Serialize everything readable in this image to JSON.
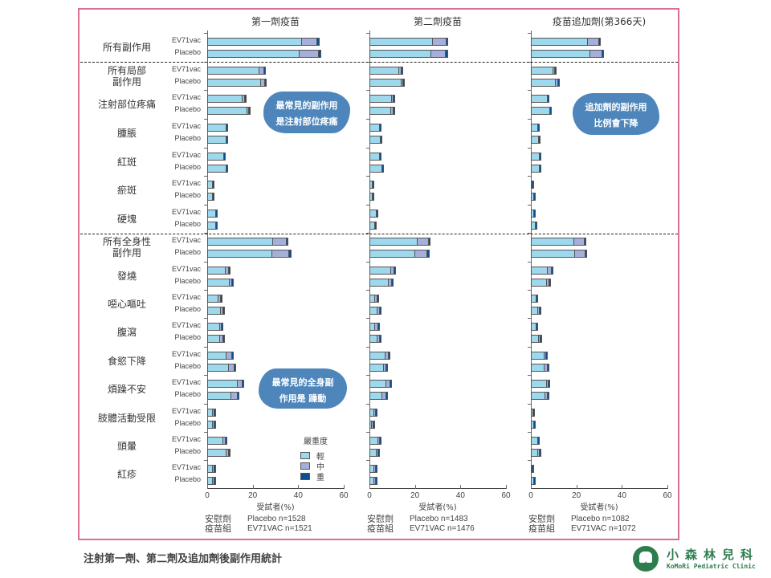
{
  "caption": "注射第一劑、第二劑及追加劑後副作用統計",
  "logo": {
    "name_cn": "小森林兒科",
    "name_en": "KoMoRi Pediatric Clinic"
  },
  "legend": {
    "title": "嚴重度",
    "items": [
      {
        "label": "輕",
        "color": "#9dd8ec"
      },
      {
        "label": "中",
        "color": "#a5afd9"
      },
      {
        "label": "重",
        "color": "#0b4e92"
      }
    ]
  },
  "xaxis_label": "受試者(%)",
  "xticks": [
    "0",
    "20",
    "40",
    "60"
  ],
  "series_labels": [
    "EV71vac",
    "Placebo"
  ],
  "row_labels": [
    [
      "所有副作用"
    ],
    [
      "所有局部",
      "副作用"
    ],
    [
      "注射部位疼痛"
    ],
    [
      "腫脹"
    ],
    [
      "紅斑"
    ],
    [
      "瘀斑"
    ],
    [
      "硬塊"
    ],
    [
      "所有全身性",
      "副作用"
    ],
    [
      "發燒"
    ],
    [
      "噁心嘔吐"
    ],
    [
      "腹瀉"
    ],
    [
      "食慾下降"
    ],
    [
      "煩躁不安"
    ],
    [
      "肢體活動受限"
    ],
    [
      "頭暈"
    ],
    [
      "紅疹"
    ]
  ],
  "panels": [
    {
      "title": "第一劑疫苗",
      "group_label_1": "安慰劑",
      "group_label_2": "疫苗組",
      "n_placebo": "Placebo n=1528",
      "n_vaccine": "EV71VAC n=1521"
    },
    {
      "title": "第二劑疫苗",
      "group_label_1": "安慰劑",
      "group_label_2": "疫苗組",
      "n_placebo": "Placebo n=1483",
      "n_vaccine": "EV71VAC n=1476"
    },
    {
      "title": "疫苗追加劑(第366天)",
      "group_label_1": "安慰劑",
      "group_label_2": "疫苗組",
      "n_placebo": "Placebo n=1082",
      "n_vaccine": "EV71VAC n=1072"
    }
  ],
  "bubbles": [
    {
      "line1": "最常見的副作用",
      "line2": "是注射部位疼痛"
    },
    {
      "line1": "追加劑的副作用",
      "line2": "比例會下降"
    },
    {
      "line1": "最常見的全身副",
      "line2": "作用是 躁動"
    }
  ],
  "chart_data": [
    {
      "type": "bar",
      "title": "第一劑疫苗",
      "xlabel": "受試者(%)",
      "xlim": [
        0,
        60
      ],
      "stacked": true,
      "orientation": "horizontal",
      "stack_levels": [
        "輕",
        "中",
        "重"
      ],
      "categories": [
        "所有副作用",
        "所有局部副作用",
        "注射部位疼痛",
        "腫脹",
        "紅斑",
        "瘀斑",
        "硬塊",
        "所有全身性副作用",
        "發燒",
        "噁心嘔吐",
        "腹瀉",
        "食慾下降",
        "煩躁不安",
        "肢體活動受限",
        "頭暈",
        "紅疹"
      ],
      "series": [
        {
          "name": "EV71vac",
          "values": [
            [
              41.5,
              7.0,
              1.0
            ],
            [
              23.0,
              2.0,
              0.3
            ],
            [
              15.5,
              1.0,
              0.3
            ],
            [
              8.5,
              0,
              0.3
            ],
            [
              7.5,
              0,
              0.3
            ],
            [
              2.5,
              0,
              0.2
            ],
            [
              4.0,
              0,
              0.2
            ],
            [
              29.0,
              6.0,
              0.8
            ],
            [
              8.0,
              1.5,
              0.3
            ],
            [
              5.0,
              1.0,
              0.2
            ],
            [
              5.5,
              1.0,
              0.2
            ],
            [
              8.5,
              2.5,
              0.2
            ],
            [
              13.5,
              2.0,
              0.2
            ],
            [
              2.5,
              0.3,
              0.2
            ],
            [
              7.0,
              1.0,
              0.3
            ],
            [
              2.5,
              0.7,
              0.2
            ]
          ]
        },
        {
          "name": "Placebo",
          "values": [
            [
              40.5,
              8.5,
              1.0
            ],
            [
              23.5,
              2.0,
              0.3
            ],
            [
              17.5,
              1.0,
              0.3
            ],
            [
              8.5,
              0,
              0.3
            ],
            [
              8.5,
              0,
              0.3
            ],
            [
              2.5,
              0,
              0.2
            ],
            [
              4.0,
              0,
              0.3
            ],
            [
              28.5,
              7.5,
              1.0
            ],
            [
              10.0,
              1.0,
              0.3
            ],
            [
              6.0,
              1.0,
              0.2
            ],
            [
              5.5,
              1.5,
              0.2
            ],
            [
              9.5,
              2.5,
              0.2
            ],
            [
              10.5,
              3.0,
              0.2
            ],
            [
              2.5,
              0.3,
              0.2
            ],
            [
              8.5,
              1.0,
              0.3
            ],
            [
              2.5,
              0.3,
              0.2
            ]
          ]
        }
      ]
    },
    {
      "type": "bar",
      "title": "第二劑疫苗",
      "xlabel": "受試者(%)",
      "xlim": [
        0,
        60
      ],
      "stacked": true,
      "orientation": "horizontal",
      "stack_levels": [
        "輕",
        "中",
        "重"
      ],
      "categories": [
        "所有副作用",
        "所有局部副作用",
        "注射部位疼痛",
        "腫脹",
        "紅斑",
        "瘀斑",
        "硬塊",
        "所有全身性副作用",
        "發燒",
        "噁心嘔吐",
        "腹瀉",
        "食慾下降",
        "煩躁不安",
        "肢體活動受限",
        "頭暈",
        "紅疹"
      ],
      "series": [
        {
          "name": "EV71vac",
          "values": [
            [
              28.0,
              6.0,
              0.6
            ],
            [
              13.0,
              1.0,
              0.2
            ],
            [
              10.0,
              0.5,
              0.2
            ],
            [
              4.5,
              0,
              0.2
            ],
            [
              4.5,
              0,
              0.2
            ],
            [
              1.5,
              0,
              0.1
            ],
            [
              3.0,
              0,
              0.1
            ],
            [
              21.0,
              5.0,
              0.6
            ],
            [
              9.5,
              1.5,
              0.2
            ],
            [
              2.5,
              1.0,
              0.2
            ],
            [
              2.5,
              1.5,
              0.2
            ],
            [
              7.0,
              1.5,
              0.2
            ],
            [
              7.5,
              1.5,
              0.2
            ],
            [
              2.0,
              0.3,
              0.2
            ],
            [
              4.0,
              0.5,
              0.2
            ],
            [
              2.0,
              0.3,
              0.2
            ]
          ]
        },
        {
          "name": "Placebo",
          "values": [
            [
              27.0,
              6.5,
              1.0
            ],
            [
              14.0,
              1.0,
              0.2
            ],
            [
              9.5,
              1.0,
              0.2
            ],
            [
              5.0,
              0,
              0.2
            ],
            [
              5.5,
              0,
              0.2
            ],
            [
              1.5,
              0,
              0.1
            ],
            [
              2.5,
              0,
              0.1
            ],
            [
              20.0,
              5.5,
              0.8
            ],
            [
              8.5,
              1.5,
              0.3
            ],
            [
              3.5,
              1.0,
              0.2
            ],
            [
              3.5,
              1.0,
              0.2
            ],
            [
              6.5,
              1.0,
              0.2
            ],
            [
              5.5,
              2.0,
              0.2
            ],
            [
              1.0,
              0.2,
              0.1
            ],
            [
              3.0,
              0.5,
              0.2
            ],
            [
              2.0,
              0.3,
              0.2
            ]
          ]
        }
      ]
    },
    {
      "type": "bar",
      "title": "疫苗追加劑(第366天)",
      "xlabel": "受試者(%)",
      "xlim": [
        0,
        60
      ],
      "stacked": true,
      "orientation": "horizontal",
      "stack_levels": [
        "輕",
        "中",
        "重"
      ],
      "categories": [
        "所有副作用",
        "所有局部副作用",
        "注射部位疼痛",
        "腫脹",
        "紅斑",
        "瘀斑",
        "硬塊",
        "所有全身性副作用",
        "發燒",
        "噁心嘔吐",
        "腹瀉",
        "食慾下降",
        "煩躁不安",
        "肢體活動受限",
        "頭暈",
        "紅疹"
      ],
      "series": [
        {
          "name": "EV71vac",
          "values": [
            [
              25.0,
              5.0,
              0.7
            ],
            [
              10.0,
              0.5,
              0.2
            ],
            [
              7.5,
              0,
              0.3
            ],
            [
              3.0,
              0,
              0.2
            ],
            [
              4.0,
              0,
              0.2
            ],
            [
              0.7,
              0,
              0.1
            ],
            [
              1.5,
              0,
              0.1
            ],
            [
              19.0,
              4.5,
              0.7
            ],
            [
              7.5,
              1.5,
              0.3
            ],
            [
              2.5,
              0,
              0.2
            ],
            [
              2.5,
              0,
              0.2
            ],
            [
              6.0,
              0.5,
              0.2
            ],
            [
              7.0,
              0.5,
              0.2
            ],
            [
              1.0,
              0,
              0.2
            ],
            [
              3.0,
              0,
              0.2
            ],
            [
              0.8,
              0,
              0.1
            ]
          ]
        },
        {
          "name": "Placebo",
          "values": [
            [
              26.0,
              5.5,
              0.7
            ],
            [
              11.0,
              1.0,
              0.2
            ],
            [
              8.5,
              0,
              0.3
            ],
            [
              3.5,
              0,
              0.2
            ],
            [
              4.0,
              0,
              0.1
            ],
            [
              1.5,
              0,
              0.1
            ],
            [
              2.0,
              0,
              0.1
            ],
            [
              19.5,
              4.5,
              0.7
            ],
            [
              7.0,
              1.0,
              0.3
            ],
            [
              3.0,
              0.5,
              0.2
            ],
            [
              3.5,
              0.7,
              0.2
            ],
            [
              6.0,
              1.5,
              0.2
            ],
            [
              6.5,
              1.0,
              0.2
            ],
            [
              1.5,
              0,
              0.2
            ],
            [
              3.0,
              0.5,
              0.2
            ],
            [
              1.5,
              0,
              0.2
            ]
          ]
        }
      ]
    }
  ]
}
